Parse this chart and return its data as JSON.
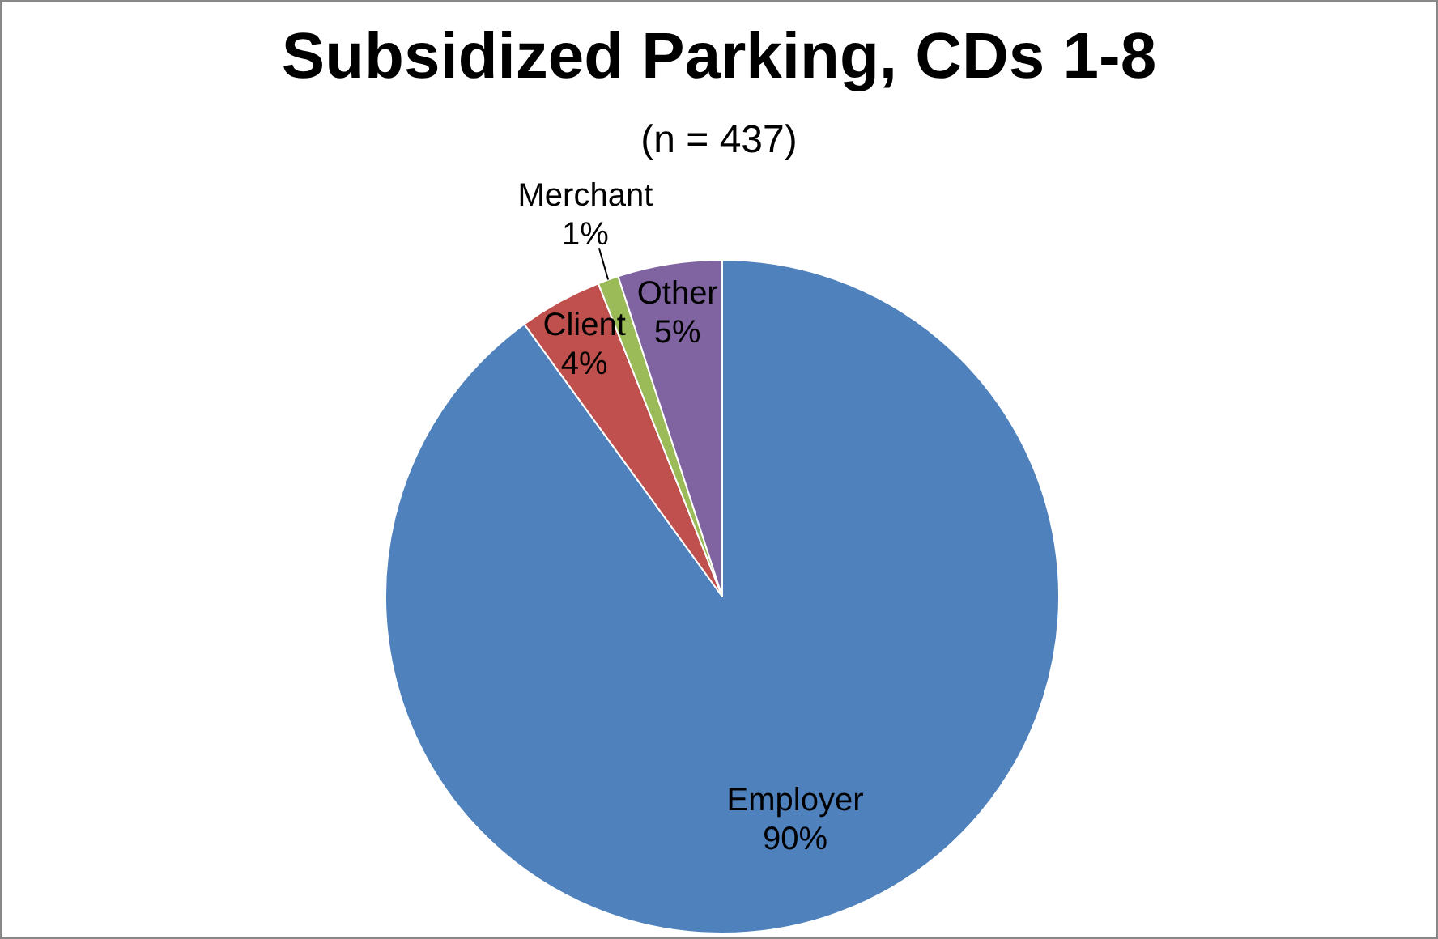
{
  "chart_data": {
    "type": "pie",
    "title": "Subsidized Parking, CDs 1-8",
    "subtitle": "(n = 437)",
    "categories": [
      "Employer",
      "Client",
      "Merchant",
      "Other"
    ],
    "values": [
      90,
      4,
      1,
      5
    ],
    "colors": [
      "#4f81bd",
      "#c0504d",
      "#9bbb59",
      "#8064a2"
    ],
    "value_labels": [
      "90%",
      "4%",
      "1%",
      "5%"
    ],
    "legend": false
  }
}
